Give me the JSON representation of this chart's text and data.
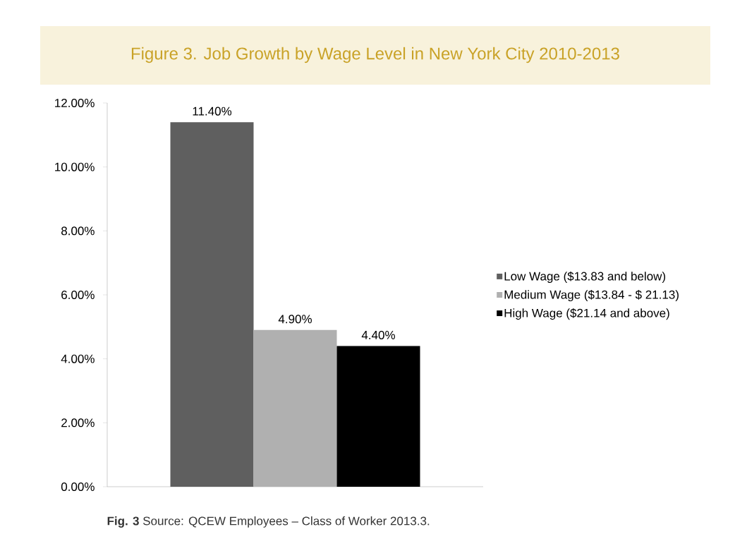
{
  "chart_data": {
    "type": "bar",
    "title": "Figure 3. Job Growth by Wage Level in New York City 2010-2013",
    "categories": [
      null
    ],
    "series": [
      {
        "name": "Low Wage ($13.83 and below)",
        "color": "#5f5f5f",
        "values": [
          11.4
        ],
        "value_labels": [
          "11.40%"
        ]
      },
      {
        "name": "Medium Wage ($13.84 - $ 21.13)",
        "color": "#b0b0b0",
        "values": [
          4.9
        ],
        "value_labels": [
          "4.90%"
        ]
      },
      {
        "name": "High Wage ($21.14 and above)",
        "color": "#000000",
        "values": [
          4.4
        ],
        "value_labels": [
          "4.40%"
        ]
      }
    ],
    "ylim": [
      0,
      12
    ],
    "yticks": [
      {
        "value": 0,
        "label": "0.00%"
      },
      {
        "value": 2,
        "label": "2.00%"
      },
      {
        "value": 4,
        "label": "4.00%"
      },
      {
        "value": 6,
        "label": "6.00%"
      },
      {
        "value": 8,
        "label": "8.00%"
      },
      {
        "value": 10,
        "label": "10.00%"
      },
      {
        "value": 12,
        "label": "12.00%"
      }
    ],
    "legend": "right",
    "grid": false,
    "annotations": [
      "**Fig. 3** Source: QCEW Employees – Class of Worker 2013.3."
    ]
  }
}
